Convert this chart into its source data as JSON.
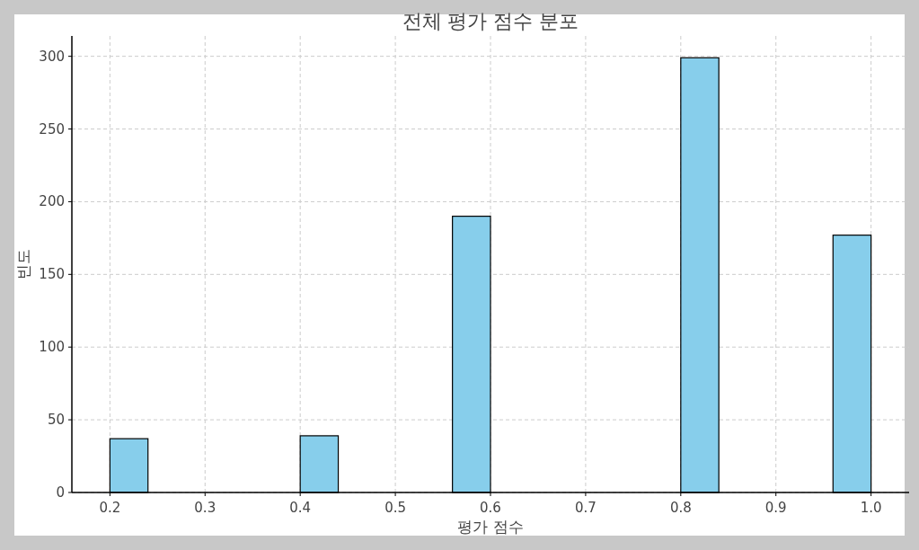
{
  "chart_data": {
    "type": "histogram",
    "title": "전체 평가 점수 분포",
    "xlabel": "평가 점수",
    "ylabel": "빈도",
    "bins": [
      0.2,
      0.24,
      0.28,
      0.32,
      0.36,
      0.4,
      0.44,
      0.48,
      0.52,
      0.56,
      0.6,
      0.64,
      0.68,
      0.72,
      0.76,
      0.8,
      0.84,
      0.88,
      0.92,
      0.96,
      1.0
    ],
    "values": [
      37,
      0,
      0,
      0,
      0,
      39,
      0,
      0,
      0,
      190,
      0,
      0,
      0,
      0,
      0,
      299,
      0,
      0,
      0,
      177
    ],
    "color": "#87ceeb",
    "xlim": [
      0.16,
      1.04
    ],
    "ylim": [
      0,
      314
    ],
    "xticks": [
      0.2,
      0.3,
      0.4,
      0.5,
      0.6,
      0.7,
      0.8,
      0.9,
      {
        "value": 1.0,
        "label": "1.0"
      }
    ],
    "yticks": [
      0,
      50,
      100,
      150,
      200,
      250,
      300
    ],
    "grid": true
  }
}
